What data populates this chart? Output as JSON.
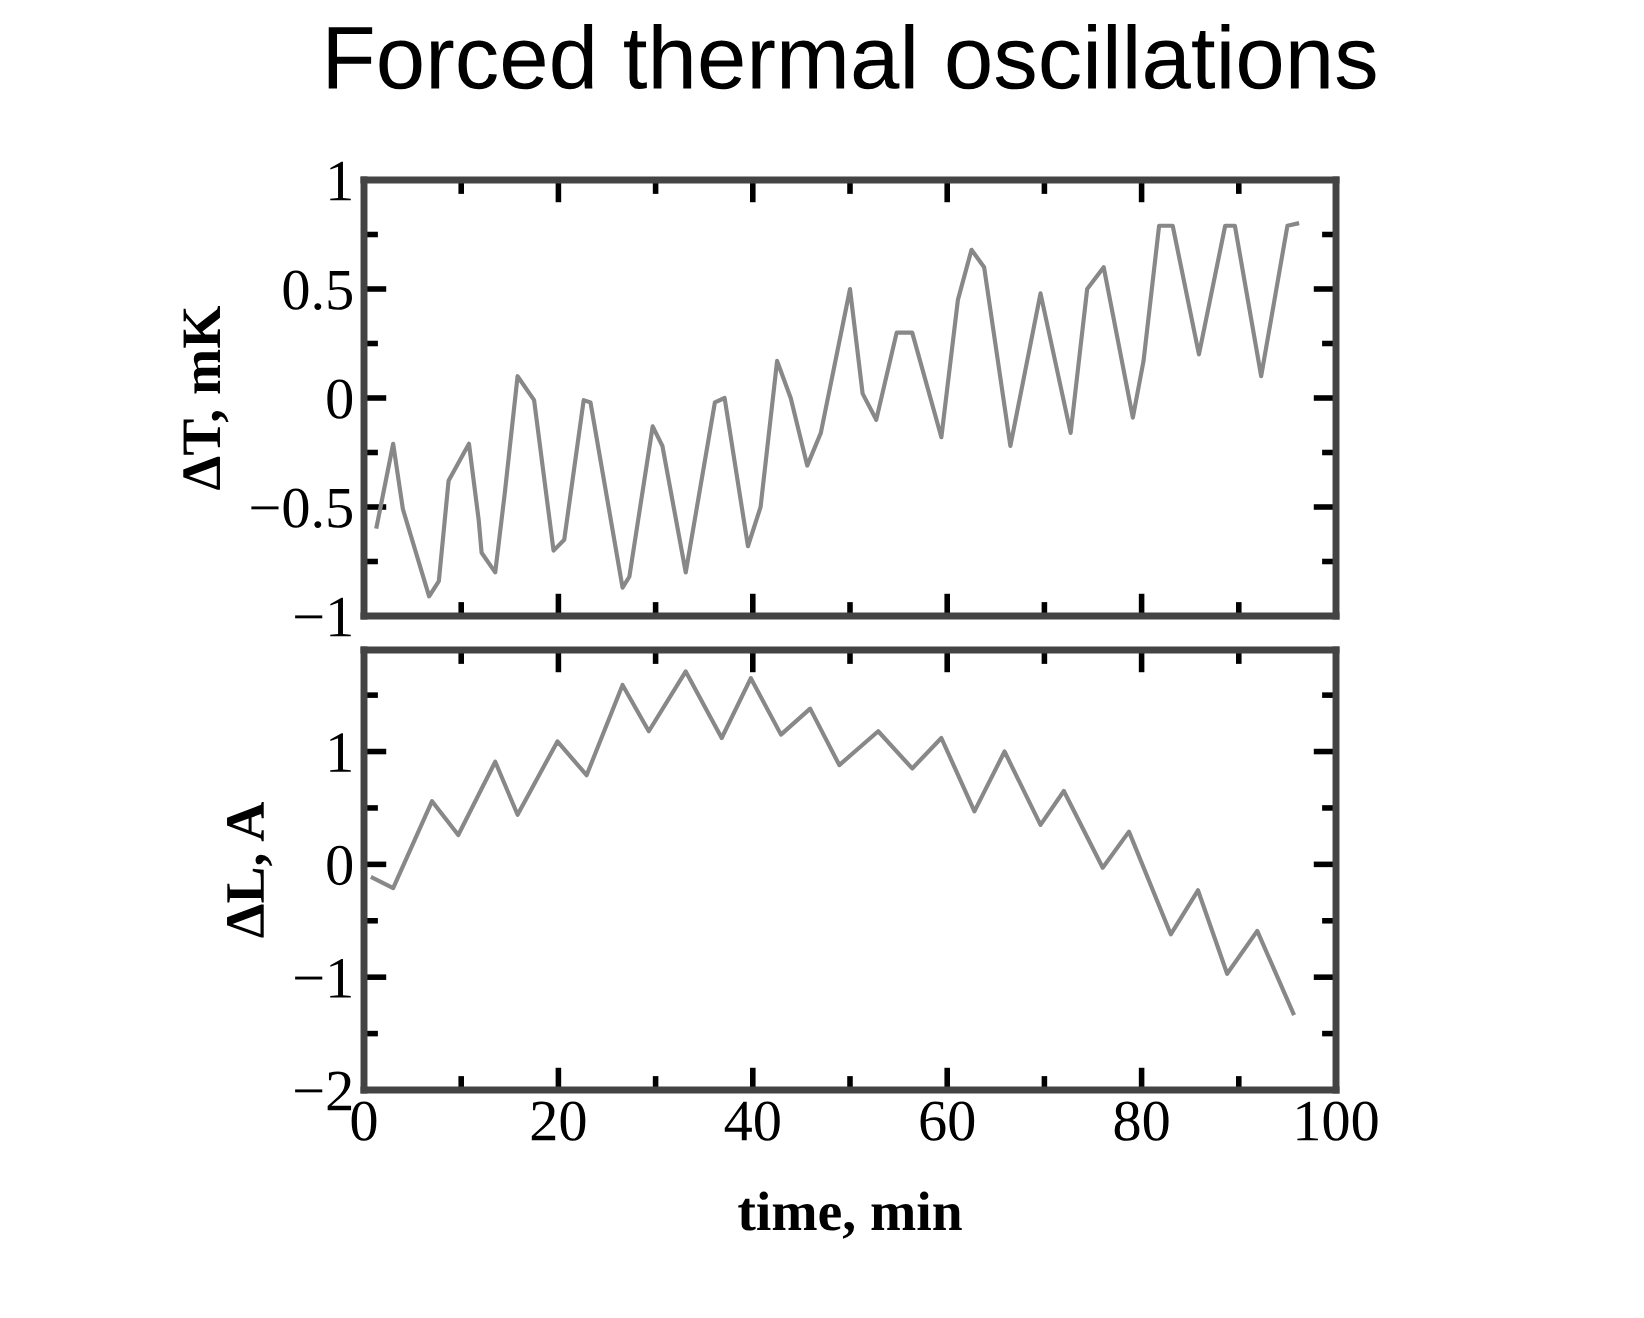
{
  "chart_data": [
    {
      "type": "line",
      "title": "Forced thermal oscillations",
      "ylabel": "ΔT, mK",
      "xlim": [
        0,
        100
      ],
      "ylim": [
        -1,
        1
      ],
      "xticks": [
        0,
        20,
        40,
        60,
        80,
        100
      ],
      "yticks": [
        -1,
        -0.5,
        0,
        0.5,
        1
      ],
      "tick_labels": "y",
      "grid": false,
      "legend": false,
      "series": [
        {
          "color": "#888888",
          "x": [
            1.3,
            3.0,
            4.0,
            6.7,
            7.7,
            8.7,
            10.8,
            11.8,
            12.1,
            13.5,
            14.5,
            15.8,
            17.5,
            19.5,
            20.6,
            22.6,
            23.3,
            26.6,
            27.3,
            29.7,
            30.7,
            33.1,
            36.1,
            37.1,
            39.5,
            40.8,
            42.5,
            43.9,
            45.6,
            47.0,
            50.0,
            51.3,
            52.7,
            54.8,
            56.4,
            59.4,
            61.1,
            62.5,
            63.8,
            66.5,
            69.6,
            72.7,
            74.4,
            76.1,
            79.1,
            80.2,
            81.8,
            83.2,
            85.9,
            88.6,
            89.6,
            92.3,
            95.0,
            96.0
          ],
          "values": [
            -0.59,
            -0.21,
            -0.51,
            -0.91,
            -0.84,
            -0.38,
            -0.21,
            -0.56,
            -0.71,
            -0.8,
            -0.43,
            0.1,
            -0.01,
            -0.7,
            -0.65,
            -0.01,
            -0.02,
            -0.87,
            -0.82,
            -0.13,
            -0.22,
            -0.8,
            -0.02,
            0.0,
            -0.68,
            -0.5,
            0.17,
            0.0,
            -0.31,
            -0.16,
            0.5,
            0.02,
            -0.1,
            0.3,
            0.3,
            -0.18,
            0.45,
            0.68,
            0.6,
            -0.22,
            0.48,
            -0.16,
            0.5,
            0.6,
            -0.09,
            0.17,
            0.79,
            0.79,
            0.2,
            0.79,
            0.79,
            0.1,
            0.79,
            0.8
          ]
        }
      ]
    },
    {
      "type": "line",
      "xlabel": "time, min",
      "ylabel": "ΔL, A",
      "xlim": [
        0,
        100
      ],
      "ylim": [
        -2,
        1.9
      ],
      "xticks": [
        0,
        20,
        40,
        60,
        80,
        100
      ],
      "yticks": [
        -2,
        -1,
        0,
        1
      ],
      "grid": false,
      "legend": false,
      "series": [
        {
          "color": "#888888",
          "x": [
            0.9,
            3.0,
            7.0,
            9.7,
            13.5,
            15.8,
            19.9,
            22.9,
            26.6,
            29.3,
            33.1,
            36.8,
            39.8,
            42.9,
            45.9,
            48.9,
            52.9,
            56.4,
            59.4,
            62.8,
            65.9,
            69.6,
            72.0,
            76.0,
            78.7,
            83.0,
            85.8,
            88.8,
            91.9,
            95.6
          ],
          "values": [
            -0.12,
            -0.21,
            0.56,
            0.26,
            0.91,
            0.44,
            1.09,
            0.79,
            1.59,
            1.18,
            1.71,
            1.12,
            1.65,
            1.15,
            1.38,
            0.88,
            1.18,
            0.85,
            1.12,
            0.47,
            1.0,
            0.35,
            0.65,
            -0.03,
            0.29,
            -0.62,
            -0.23,
            -0.97,
            -0.59,
            -1.32
          ]
        }
      ]
    }
  ]
}
